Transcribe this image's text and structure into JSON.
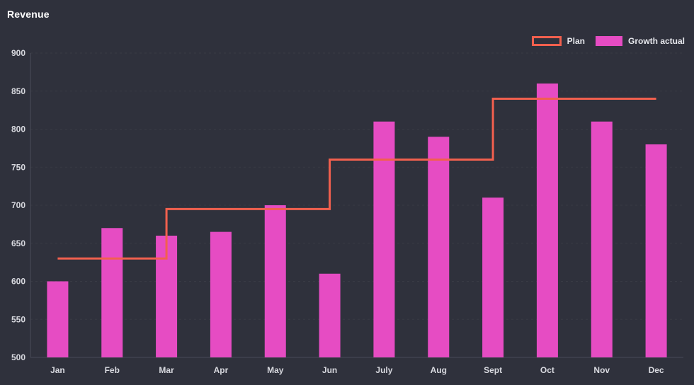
{
  "title": "Revenue",
  "colors": {
    "background": "#2f313c",
    "bar": "#e64cc3",
    "plan_line": "#f2604e",
    "axis_line": "#4a4c58",
    "grid_line": "rgba(255,255,255,0.05)",
    "axis_text": "#d8d9df",
    "title_text": "#ffffff"
  },
  "legend": {
    "items": [
      {
        "label": "Plan",
        "swatch": "line-outline"
      },
      {
        "label": "Growth actual",
        "swatch": "bar-fill"
      }
    ]
  },
  "chart_data": {
    "type": "bar",
    "title": "Revenue",
    "categories": [
      "Jan",
      "Feb",
      "Mar",
      "Apr",
      "May",
      "Jun",
      "July",
      "Aug",
      "Sept",
      "Oct",
      "Nov",
      "Dec"
    ],
    "series": [
      {
        "name": "Plan",
        "type": "step-line",
        "color": "#f2604e",
        "values": [
          630,
          630,
          695,
          695,
          695,
          760,
          760,
          760,
          840,
          840,
          840,
          840
        ]
      },
      {
        "name": "Growth actual",
        "type": "bar",
        "color": "#e64cc3",
        "values": [
          600,
          670,
          660,
          665,
          700,
          610,
          810,
          790,
          710,
          860,
          810,
          780
        ]
      }
    ],
    "xlabel": "",
    "ylabel": "Revenue",
    "ylim": [
      500,
      900
    ],
    "yticks": [
      500,
      550,
      600,
      650,
      700,
      750,
      800,
      850,
      900
    ],
    "grid": "subtle-dashed-horizontal",
    "legend_position": "top-right"
  }
}
